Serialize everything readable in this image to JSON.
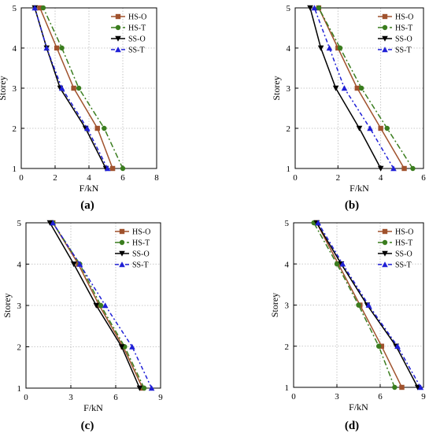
{
  "chart_data": [
    {
      "type": "line",
      "panel_label": "(a)",
      "xlabel": "F/kN",
      "ylabel": "Storey",
      "xlim": [
        0,
        8
      ],
      "ylim": [
        1,
        5
      ],
      "xticks": [
        0,
        2,
        4,
        6,
        8
      ],
      "yticks": [
        1,
        2,
        3,
        4,
        5
      ],
      "grid": true,
      "legend": "top-right",
      "series": [
        {
          "name": "HS-O",
          "color": "#a0522d",
          "dash": "solid",
          "marker": "square",
          "x": [
            5.4,
            4.5,
            3.1,
            2.1,
            1.1
          ],
          "y": [
            1,
            2,
            3,
            4,
            5
          ]
        },
        {
          "name": "HS-T",
          "color": "#3a7d1e",
          "dash": "dashdot",
          "marker": "circle",
          "x": [
            6.0,
            4.9,
            3.4,
            2.4,
            1.3
          ],
          "y": [
            1,
            2,
            3,
            4,
            5
          ]
        },
        {
          "name": "SS-O",
          "color": "#000000",
          "dash": "solid",
          "marker": "triangle-down",
          "x": [
            5.0,
            3.8,
            2.3,
            1.5,
            0.8
          ],
          "y": [
            1,
            2,
            3,
            4,
            5
          ]
        },
        {
          "name": "SS-T",
          "color": "#1f1fd6",
          "dash": "dashdot2",
          "marker": "triangle-up",
          "x": [
            5.1,
            3.9,
            2.4,
            1.5,
            0.8
          ],
          "y": [
            1,
            2,
            3,
            4,
            5
          ]
        }
      ]
    },
    {
      "type": "line",
      "panel_label": "(b)",
      "xlabel": "F/kN",
      "ylabel": "Storey",
      "xlim": [
        0,
        6
      ],
      "ylim": [
        1,
        5
      ],
      "xticks": [
        0,
        2,
        4,
        6
      ],
      "yticks": [
        1,
        2,
        3,
        4,
        5
      ],
      "grid": true,
      "legend": "top-right",
      "series": [
        {
          "name": "HS-O",
          "color": "#a0522d",
          "dash": "solid",
          "marker": "square",
          "x": [
            5.1,
            4.0,
            2.9,
            2.0,
            1.1
          ],
          "y": [
            1,
            2,
            3,
            4,
            5
          ]
        },
        {
          "name": "HS-T",
          "color": "#3a7d1e",
          "dash": "dashdot",
          "marker": "circle",
          "x": [
            5.5,
            4.3,
            3.1,
            2.1,
            1.1
          ],
          "y": [
            1,
            2,
            3,
            4,
            5
          ]
        },
        {
          "name": "SS-O",
          "color": "#000000",
          "dash": "solid",
          "marker": "triangle-down",
          "x": [
            4.0,
            3.0,
            1.9,
            1.2,
            0.7
          ],
          "y": [
            1,
            2,
            3,
            4,
            5
          ]
        },
        {
          "name": "SS-T",
          "color": "#1f1fd6",
          "dash": "dashdot2",
          "marker": "triangle-up",
          "x": [
            4.6,
            3.5,
            2.3,
            1.6,
            0.9
          ],
          "y": [
            1,
            2,
            3,
            4,
            5
          ]
        }
      ]
    },
    {
      "type": "line",
      "panel_label": "(c)",
      "xlabel": "F/kN",
      "ylabel": "Storey",
      "xlim": [
        0,
        9
      ],
      "ylim": [
        1,
        5
      ],
      "xticks": [
        0,
        3,
        6,
        9
      ],
      "yticks": [
        1,
        2,
        3,
        4,
        5
      ],
      "grid": true,
      "legend": "top-right",
      "series": [
        {
          "name": "HS-O",
          "color": "#a0522d",
          "dash": "solid",
          "marker": "square",
          "x": [
            7.8,
            6.5,
            4.9,
            3.5,
            1.8
          ],
          "y": [
            1,
            2,
            3,
            4,
            5
          ]
        },
        {
          "name": "HS-T",
          "color": "#3a7d1e",
          "dash": "dashdot",
          "marker": "circle",
          "x": [
            7.9,
            6.6,
            5.0,
            3.6,
            1.8
          ],
          "y": [
            1,
            2,
            3,
            4,
            5
          ]
        },
        {
          "name": "SS-O",
          "color": "#000000",
          "dash": "solid",
          "marker": "triangle-down",
          "x": [
            7.6,
            6.4,
            4.7,
            3.2,
            1.6
          ],
          "y": [
            1,
            2,
            3,
            4,
            5
          ]
        },
        {
          "name": "SS-T",
          "color": "#1f1fd6",
          "dash": "dashdot2",
          "marker": "triangle-up",
          "x": [
            8.4,
            7.1,
            5.3,
            3.6,
            1.8
          ],
          "y": [
            1,
            2,
            3,
            4,
            5
          ]
        }
      ]
    },
    {
      "type": "line",
      "panel_label": "(d)",
      "xlabel": "F/kN",
      "ylabel": "Storey",
      "xlim": [
        0,
        9
      ],
      "ylim": [
        1,
        5
      ],
      "xticks": [
        0,
        3,
        6,
        9
      ],
      "yticks": [
        1,
        2,
        3,
        4,
        5
      ],
      "grid": true,
      "legend": "top-right",
      "series": [
        {
          "name": "HS-O",
          "color": "#a0522d",
          "dash": "solid",
          "marker": "square",
          "x": [
            7.5,
            6.1,
            4.6,
            3.1,
            1.6
          ],
          "y": [
            1,
            2,
            3,
            4,
            5
          ]
        },
        {
          "name": "HS-T",
          "color": "#3a7d1e",
          "dash": "dashdot",
          "marker": "circle",
          "x": [
            7.0,
            5.9,
            4.5,
            3.0,
            1.4
          ],
          "y": [
            1,
            2,
            3,
            4,
            5
          ]
        },
        {
          "name": "SS-O",
          "color": "#000000",
          "dash": "solid",
          "marker": "triangle-down",
          "x": [
            8.6,
            7.1,
            5.1,
            3.3,
            1.6
          ],
          "y": [
            1,
            2,
            3,
            4,
            5
          ]
        },
        {
          "name": "SS-T",
          "color": "#1f1fd6",
          "dash": "dashdot2",
          "marker": "triangle-up",
          "x": [
            8.8,
            7.2,
            5.2,
            3.4,
            1.7
          ],
          "y": [
            1,
            2,
            3,
            4,
            5
          ]
        }
      ]
    }
  ]
}
